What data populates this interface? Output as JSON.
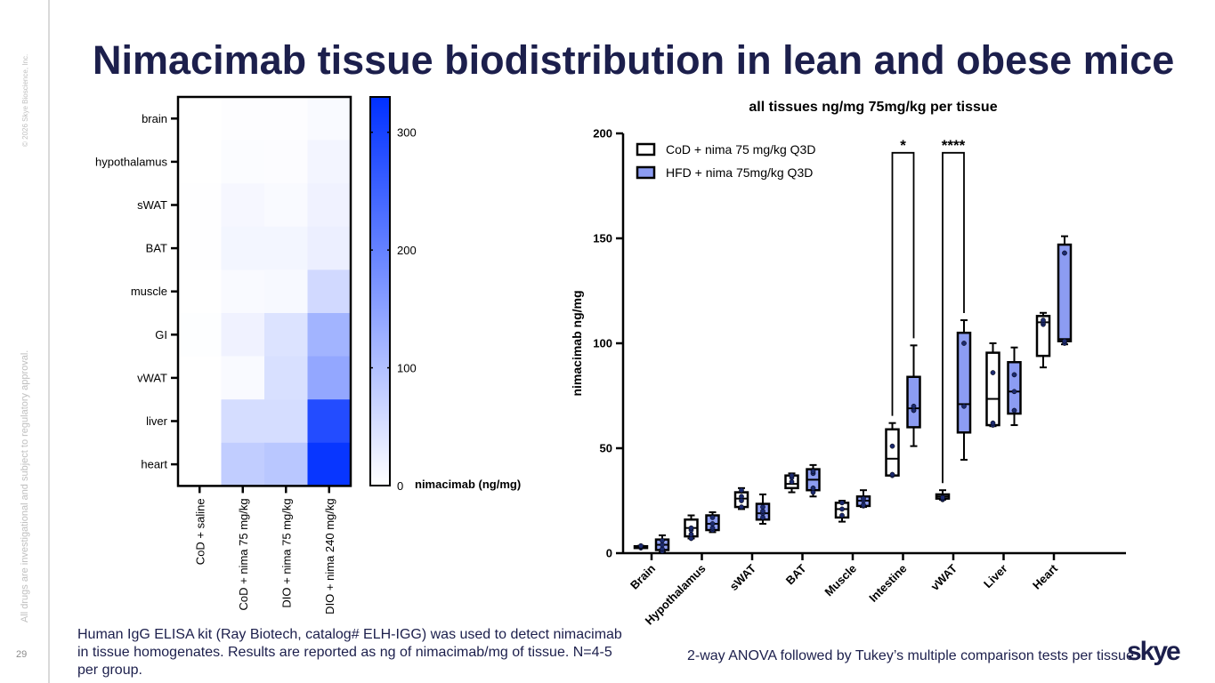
{
  "slide": {
    "title": "Nimacimab tissue biodistribution in lean and obese mice",
    "page_number": "29",
    "copyright": "© 2026 Skye Bioscience, Inc.",
    "disclaimer": "All drugs are investigational and subject to regulatory approval.",
    "footnote_left": "Human IgG ELISA kit (Ray Biotech, catalog# ELH-IGG) was used to detect nimacimab in tissue homogenates. Results are reported as ng of nimacimab/mg of tissue.   N=4-5 per group.",
    "footnote_right": "2-way ANOVA followed by Tukey’s multiple comparison tests per tissue.",
    "logo": "skye"
  },
  "colors": {
    "title": "#1c1f4c",
    "heat_low": "#ffffff",
    "heat_high": "#0030ff",
    "box_hfd": "#8c9cf2",
    "box_cod": "#ffffff",
    "point": "#1c2a6e"
  },
  "chart_data": [
    {
      "type": "heatmap",
      "title": "",
      "rows": [
        "brain",
        "hypothalamus",
        "sWAT",
        "BAT",
        "muscle",
        "GI",
        "vWAT",
        "liver",
        "heart"
      ],
      "columns": [
        "CoD + saline",
        "CoD + nima 75 mg/kg",
        "DIO + nima 75 mg/kg",
        "DIO + nima 240 mg/kg"
      ],
      "values": [
        [
          0,
          3,
          3,
          8
        ],
        [
          0,
          5,
          4,
          16
        ],
        [
          1,
          12,
          8,
          20
        ],
        [
          1,
          15,
          15,
          25
        ],
        [
          0,
          8,
          10,
          60
        ],
        [
          2,
          20,
          45,
          120
        ],
        [
          0,
          8,
          50,
          140
        ],
        [
          0,
          55,
          55,
          285
        ],
        [
          0,
          80,
          90,
          320
        ]
      ],
      "colorbar": {
        "label": "nimacimab (ng/mg)",
        "range": [
          0,
          330
        ],
        "ticks": [
          0,
          100,
          200,
          300
        ]
      }
    },
    {
      "type": "box",
      "title": "all tissues ng/mg 75mg/kg per tissue",
      "ylabel": "nimacimab ng/mg",
      "xlabel": "",
      "ylim": [
        0,
        200
      ],
      "yticks": [
        0,
        50,
        100,
        150,
        200
      ],
      "legend_position": "top-left",
      "categories": [
        "Brain",
        "Hypothalamus",
        "sWAT",
        "BAT",
        "Muscle",
        "Intestine",
        "vWAT",
        "Liver",
        "Heart"
      ],
      "series": [
        {
          "name": "CoD + nima 75 mg/kg Q3D",
          "boxes": [
            {
              "min": 2.5,
              "q1": 2.8,
              "median": 3,
              "q3": 3.3,
              "max": 3.5,
              "points": [
                2.5,
                3,
                3.2,
                3.5
              ]
            },
            {
              "min": 7,
              "q1": 8,
              "median": 12,
              "q3": 16,
              "max": 18,
              "points": [
                7,
                9,
                11,
                12
              ]
            },
            {
              "min": 21,
              "q1": 22,
              "median": 26,
              "q3": 29,
              "max": 31,
              "points": [
                22,
                25,
                27,
                30
              ]
            },
            {
              "min": 29,
              "q1": 31,
              "median": 33,
              "q3": 37,
              "max": 38,
              "points": [
                34,
                36,
                37
              ]
            },
            {
              "min": 15,
              "q1": 17,
              "median": 21,
              "q3": 24,
              "max": 25,
              "points": [
                18,
                21,
                24
              ]
            },
            {
              "min": 37,
              "q1": 37,
              "median": 45,
              "q3": 59,
              "max": 62,
              "points": [
                37,
                37.5,
                51
              ]
            },
            {
              "min": 25.5,
              "q1": 26,
              "median": 27,
              "q3": 28,
              "max": 30,
              "points": [
                25.5,
                26,
                26.5
              ]
            },
            {
              "min": 60.5,
              "q1": 61,
              "median": 73.5,
              "q3": 95.5,
              "max": 100,
              "points": [
                61,
                62,
                86
              ]
            },
            {
              "min": 88.5,
              "q1": 94,
              "median": 110,
              "q3": 113,
              "max": 114.5,
              "points": [
                109,
                110,
                111
              ]
            }
          ]
        },
        {
          "name": "HFD + nima 75mg/kg Q3D",
          "boxes": [
            {
              "min": 0.5,
              "q1": 1.5,
              "median": 4,
              "q3": 6.5,
              "max": 8.5,
              "points": [
                1,
                2,
                4,
                6
              ]
            },
            {
              "min": 10,
              "q1": 11,
              "median": 14,
              "q3": 18,
              "max": 19.5,
              "points": [
                11,
                12,
                14,
                17
              ]
            },
            {
              "min": 14,
              "q1": 16,
              "median": 19,
              "q3": 23.5,
              "max": 28,
              "points": [
                17,
                19,
                20,
                22
              ]
            },
            {
              "min": 27,
              "q1": 30,
              "median": 35,
              "q3": 40,
              "max": 42,
              "points": [
                29,
                31,
                38,
                39
              ]
            },
            {
              "min": 22,
              "q1": 22.5,
              "median": 25,
              "q3": 27,
              "max": 30,
              "points": [
                22.5,
                23,
                25,
                26
              ]
            },
            {
              "min": 51,
              "q1": 60,
              "median": 69,
              "q3": 84,
              "max": 99,
              "points": [
                68,
                70
              ]
            },
            {
              "min": 44.5,
              "q1": 57.5,
              "median": 71,
              "q3": 105,
              "max": 111,
              "points": [
                70,
                100
              ]
            },
            {
              "min": 61,
              "q1": 66.5,
              "median": 77,
              "q3": 91,
              "max": 98,
              "points": [
                68,
                77,
                85
              ]
            },
            {
              "min": 99.5,
              "q1": 101,
              "median": 102,
              "q3": 147,
              "max": 151,
              "points": [
                100,
                101,
                143
              ]
            }
          ]
        }
      ],
      "annotations": [
        {
          "category": "Intestine",
          "label": "*",
          "bracket_top": 195
        },
        {
          "category": "vWAT",
          "label": "****",
          "bracket_top": 195
        }
      ]
    }
  ]
}
